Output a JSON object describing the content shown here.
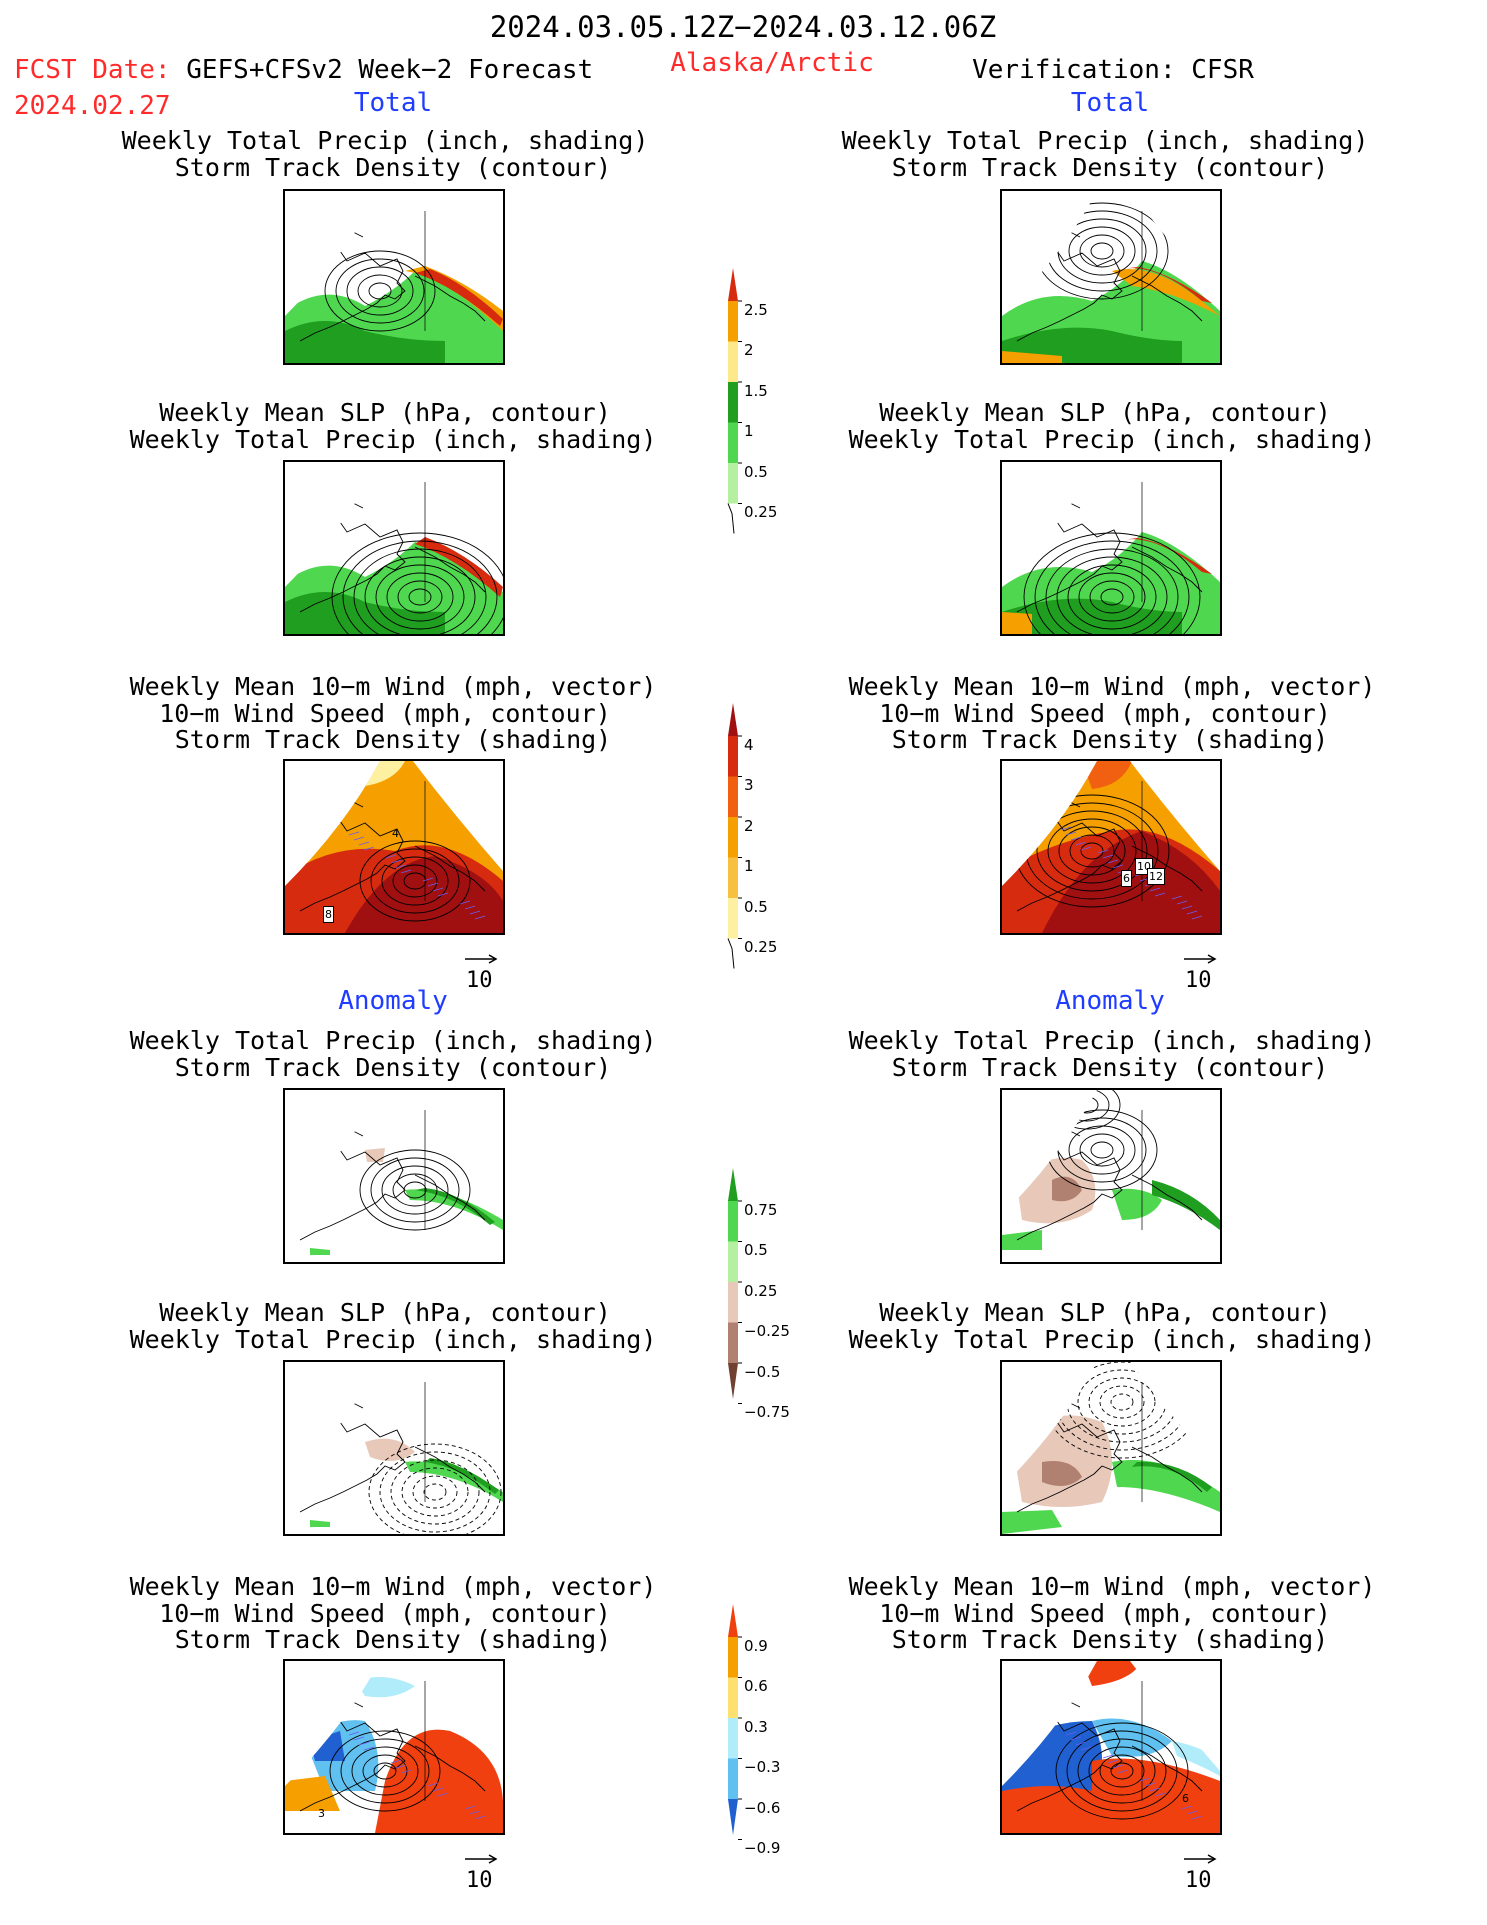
{
  "header": {
    "date_range": "2024.03.05.12Z−2024.03.12.06Z",
    "fcst_label": "FCST Date:",
    "fcst_model": "GEFS+CFSv2 Week−2 Forecast",
    "fcst_date": "2024.02.27",
    "region": "Alaska/Arctic",
    "verification": "Verification: CFSR"
  },
  "sections": {
    "total": "Total",
    "anomaly": "Anomaly"
  },
  "panel_titles": {
    "precip_track": [
      "Weekly Total Precip (inch, shading)",
      "Storm Track Density (contour)"
    ],
    "slp_precip": [
      "Weekly Mean SLP (hPa, contour)",
      "Weekly Total Precip (inch, shading)"
    ],
    "wind_track": [
      "Weekly Mean 10−m Wind (mph, vector)",
      "10−m Wind Speed (mph, contour)",
      "Storm Track Density (shading)"
    ]
  },
  "vector_reference": "10",
  "map_labels": {
    "left_wind_total": [
      "4",
      "8"
    ],
    "right_wind_total": [
      "6",
      "10",
      "12"
    ],
    "left_wind_anom": [
      "3"
    ],
    "right_wind_anom": [
      "6"
    ]
  },
  "colorbars": {
    "precip_total": {
      "labels": [
        "2.5",
        "2",
        "1.5",
        "1",
        "0.5",
        "0.25"
      ],
      "colors": [
        "#d72b10",
        "#f5a000",
        "#fde98a",
        "#1f9e1f",
        "#4fd84f",
        "#b4f0a0"
      ]
    },
    "track_total": {
      "labels": [
        "4",
        "3",
        "2",
        "1",
        "0.5",
        "0.25"
      ],
      "colors": [
        "#a01010",
        "#d72b10",
        "#f06010",
        "#f5a000",
        "#f8c040",
        "#fdf0a0"
      ]
    },
    "precip_anom": {
      "labels": [
        "0.75",
        "0.5",
        "0.25",
        "−0.25",
        "−0.5",
        "−0.75"
      ],
      "colors": [
        "#1f9e1f",
        "#4fd84f",
        "#b4f0a0",
        "#e8c8b8",
        "#b08070",
        "#704030"
      ]
    },
    "track_anom": {
      "labels": [
        "0.9",
        "0.6",
        "0.3",
        "−0.3",
        "−0.6",
        "−0.9"
      ],
      "colors": [
        "#f04010",
        "#f5a000",
        "#fde070",
        "#b0ecfa",
        "#60c0f0",
        "#2060d0"
      ]
    }
  }
}
